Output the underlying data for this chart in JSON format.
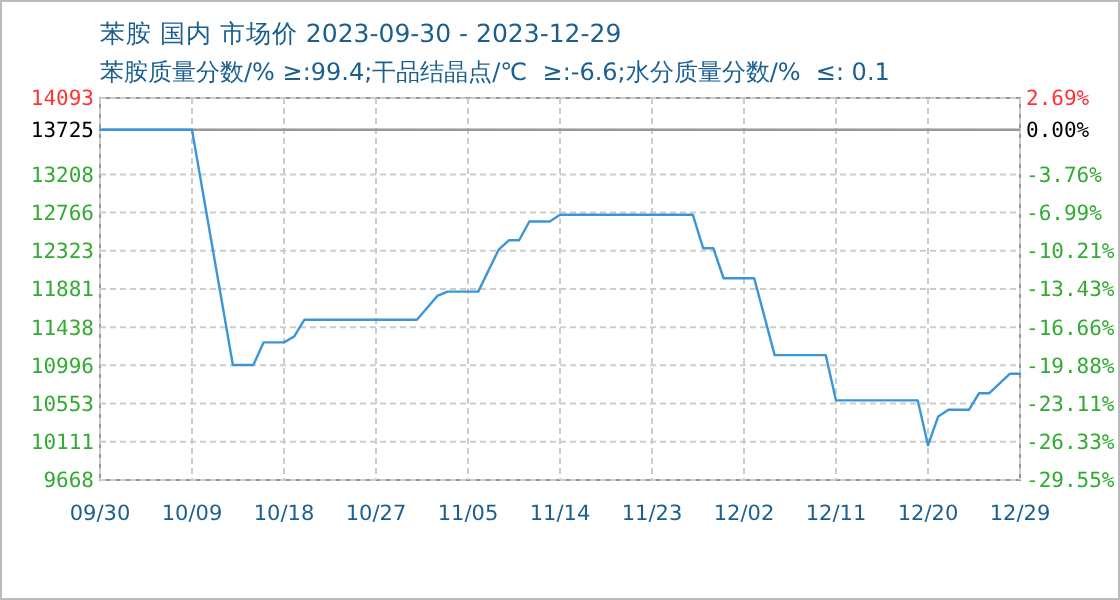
{
  "chart_data": {
    "type": "line",
    "title": "苯胺 国内 市场价 2023-09-30 - 2023-12-29",
    "subtitle": "苯胺质量分数/% ≥:99.4;干品结晶点/℃  ≥:-6.6;水分质量分数/%  ≤: 0.1",
    "x": [
      "2023-09-30",
      "2023-10-09",
      "2023-10-13",
      "2023-10-15",
      "2023-10-16",
      "2023-10-18",
      "2023-10-19",
      "2023-10-20",
      "2023-10-31",
      "2023-11-02",
      "2023-11-03",
      "2023-11-06",
      "2023-11-08",
      "2023-11-09",
      "2023-11-10",
      "2023-11-11",
      "2023-11-13",
      "2023-11-14",
      "2023-11-27",
      "2023-11-28",
      "2023-11-29",
      "2023-11-30",
      "2023-12-03",
      "2023-12-05",
      "2023-12-10",
      "2023-12-11",
      "2023-12-19",
      "2023-12-20",
      "2023-12-21",
      "2023-12-22",
      "2023-12-24",
      "2023-12-25",
      "2023-12-26",
      "2023-12-28",
      "2023-12-29"
    ],
    "series": [
      {
        "color": "#3a96d8",
        "values": [
          13725,
          13725,
          11000,
          11000,
          11262,
          11262,
          11331,
          11525,
          11525,
          11800,
          11850,
          11850,
          12337,
          12445,
          12445,
          12662,
          12662,
          12740,
          12740,
          12353,
          12353,
          12005,
          12005,
          11114,
          11114,
          10590,
          10590,
          10070,
          10404,
          10481,
          10481,
          10673,
          10673,
          10898,
          10898
        ]
      }
    ],
    "xlim": [
      "2023-09-30",
      "2023-12-29"
    ],
    "xticks": [
      {
        "value": "2023-09-30",
        "label": "09/30"
      },
      {
        "value": "2023-10-09",
        "label": "10/09"
      },
      {
        "value": "2023-10-18",
        "label": "10/18"
      },
      {
        "value": "2023-10-27",
        "label": "10/27"
      },
      {
        "value": "2023-11-05",
        "label": "11/05"
      },
      {
        "value": "2023-11-14",
        "label": "11/14"
      },
      {
        "value": "2023-11-23",
        "label": "11/23"
      },
      {
        "value": "2023-12-02",
        "label": "12/02"
      },
      {
        "value": "2023-12-11",
        "label": "12/11"
      },
      {
        "value": "2023-12-20",
        "label": "12/20"
      },
      {
        "value": "2023-12-29",
        "label": "12/29"
      }
    ],
    "ylim": [
      9668,
      14093
    ],
    "yticks": [
      9668,
      10111,
      10553,
      10996,
      11438,
      11881,
      12323,
      12766,
      13208,
      13725,
      14093
    ],
    "y2lim": [
      -29.55,
      2.69
    ],
    "y2ticks": [
      {
        "value": -29.55,
        "label": "-29.55%"
      },
      {
        "value": -26.33,
        "label": "-26.33%"
      },
      {
        "value": -23.11,
        "label": "-23.11%"
      },
      {
        "value": -19.88,
        "label": "-19.88%"
      },
      {
        "value": -16.66,
        "label": "-16.66%"
      },
      {
        "value": -13.43,
        "label": "-13.43%"
      },
      {
        "value": -10.21,
        "label": "-10.21%"
      },
      {
        "value": -6.99,
        "label": "-6.99%"
      },
      {
        "value": -3.76,
        "label": "-3.76%"
      },
      {
        "value": 0,
        "label": "0.00%"
      },
      {
        "value": 2.69,
        "label": "2.69%"
      }
    ],
    "ref_lines": [
      {
        "axis": "y",
        "value": 13725,
        "color": "#999999"
      }
    ],
    "grid": true,
    "marker": "none",
    "line_style": "solid"
  }
}
